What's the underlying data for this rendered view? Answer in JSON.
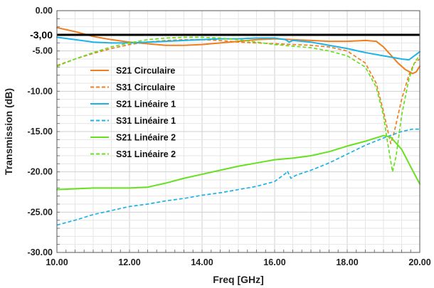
{
  "chart_data": {
    "type": "line",
    "title": "",
    "xlabel": "Freq [GHz]",
    "ylabel": "Transmission (dB)",
    "xlim": [
      10,
      20
    ],
    "ylim": [
      -30,
      0
    ],
    "x_ticks": [
      "10.00",
      "12.00",
      "14.00",
      "16.00",
      "18.00",
      "20.00"
    ],
    "y_ticks": [
      "0.00",
      "-5.00",
      "-10.00",
      "-15.00",
      "-20.00",
      "-25.00",
      "-30.00"
    ],
    "extra_y_tick": {
      "value": -3,
      "label": "-3,00"
    },
    "grid": true,
    "legend_position": "left",
    "reference_line": {
      "y": -3,
      "color": "#000000"
    },
    "series": [
      {
        "name": "S21 Circulaire",
        "color": "#f07d1e",
        "dash": "solid",
        "points": [
          [
            10,
            -2.1
          ],
          [
            10.5,
            -2.6
          ],
          [
            11,
            -3.2
          ],
          [
            11.5,
            -3.6
          ],
          [
            12,
            -3.9
          ],
          [
            12.5,
            -4.1
          ],
          [
            13,
            -4.3
          ],
          [
            13.5,
            -4.3
          ],
          [
            14,
            -4.2
          ],
          [
            14.5,
            -4.0
          ],
          [
            15,
            -3.8
          ],
          [
            15.5,
            -3.6
          ],
          [
            16,
            -3.5
          ],
          [
            16.5,
            -3.6
          ],
          [
            17,
            -3.7
          ],
          [
            17.5,
            -3.8
          ],
          [
            18,
            -3.8
          ],
          [
            18.5,
            -3.7
          ],
          [
            18.8,
            -3.8
          ],
          [
            19.0,
            -4.5
          ],
          [
            19.2,
            -5.5
          ],
          [
            19.4,
            -6.5
          ],
          [
            19.6,
            -7.3
          ],
          [
            19.8,
            -7.8
          ],
          [
            19.9,
            -7.6
          ],
          [
            20,
            -6.9
          ]
        ]
      },
      {
        "name": "S31 Circulaire",
        "color": "#f07d1e",
        "dash": "dashed",
        "points": [
          [
            10,
            -6.8
          ],
          [
            10.5,
            -6.0
          ],
          [
            11,
            -5.3
          ],
          [
            11.5,
            -4.7
          ],
          [
            12,
            -4.2
          ],
          [
            12.5,
            -3.9
          ],
          [
            13,
            -3.7
          ],
          [
            13.5,
            -3.6
          ],
          [
            14,
            -3.6
          ],
          [
            14.5,
            -3.7
          ],
          [
            15,
            -3.9
          ],
          [
            15.5,
            -4.0
          ],
          [
            16,
            -4.1
          ],
          [
            16.5,
            -4.2
          ],
          [
            17,
            -4.3
          ],
          [
            17.5,
            -4.5
          ],
          [
            18,
            -5.0
          ],
          [
            18.5,
            -6.5
          ],
          [
            18.8,
            -9.0
          ],
          [
            19.0,
            -12.5
          ],
          [
            19.2,
            -16.5
          ],
          [
            19.3,
            -15.0
          ],
          [
            19.5,
            -11.0
          ],
          [
            19.7,
            -8.0
          ],
          [
            19.85,
            -6.5
          ],
          [
            20,
            -6.0
          ]
        ]
      },
      {
        "name": "S21 Linéaire 1",
        "color": "#1ab3e8",
        "dash": "solid",
        "points": [
          [
            10,
            -3.3
          ],
          [
            10.5,
            -3.6
          ],
          [
            11,
            -3.9
          ],
          [
            11.5,
            -4.0
          ],
          [
            12,
            -4.0
          ],
          [
            12.5,
            -3.9
          ],
          [
            13,
            -3.8
          ],
          [
            13.5,
            -3.7
          ],
          [
            14,
            -3.6
          ],
          [
            14.5,
            -3.5
          ],
          [
            15,
            -3.5
          ],
          [
            15.5,
            -3.4
          ],
          [
            16,
            -3.4
          ],
          [
            16.3,
            -3.6
          ],
          [
            16.4,
            -3.9
          ],
          [
            16.5,
            -3.7
          ],
          [
            17,
            -3.9
          ],
          [
            17.5,
            -4.3
          ],
          [
            18,
            -4.7
          ],
          [
            18.5,
            -5.2
          ],
          [
            19,
            -5.6
          ],
          [
            19.5,
            -6.0
          ],
          [
            19.7,
            -6.1
          ],
          [
            20,
            -5.1
          ]
        ]
      },
      {
        "name": "S31 Linéaire 1",
        "color": "#1ab3e8",
        "dash": "dashed",
        "points": [
          [
            10,
            -26.6
          ],
          [
            10.5,
            -26.0
          ],
          [
            11,
            -25.3
          ],
          [
            11.5,
            -24.8
          ],
          [
            12,
            -24.3
          ],
          [
            12.5,
            -24.0
          ],
          [
            13,
            -23.6
          ],
          [
            13.5,
            -23.3
          ],
          [
            14,
            -22.9
          ],
          [
            14.5,
            -22.6
          ],
          [
            15,
            -22.2
          ],
          [
            15.5,
            -21.8
          ],
          [
            16,
            -21.2
          ],
          [
            16.3,
            -20.2
          ],
          [
            16.35,
            -19.9
          ],
          [
            16.45,
            -20.8
          ],
          [
            16.6,
            -20.4
          ],
          [
            17,
            -19.8
          ],
          [
            17.5,
            -18.9
          ],
          [
            18,
            -17.8
          ],
          [
            18.5,
            -16.7
          ],
          [
            19,
            -15.8
          ],
          [
            19.5,
            -15.0
          ],
          [
            19.8,
            -14.7
          ],
          [
            20,
            -14.7
          ]
        ]
      },
      {
        "name": "S21 Linéaire 2",
        "color": "#66e01f",
        "dash": "solid",
        "points": [
          [
            10,
            -22.2
          ],
          [
            10.5,
            -22.1
          ],
          [
            11,
            -22.0
          ],
          [
            11.5,
            -22.0
          ],
          [
            12,
            -22.0
          ],
          [
            12.5,
            -21.9
          ],
          [
            13,
            -21.4
          ],
          [
            13.5,
            -20.8
          ],
          [
            14,
            -20.3
          ],
          [
            14.5,
            -19.8
          ],
          [
            15,
            -19.3
          ],
          [
            15.5,
            -18.9
          ],
          [
            16,
            -18.5
          ],
          [
            16.5,
            -18.3
          ],
          [
            17,
            -18.0
          ],
          [
            17.5,
            -17.5
          ],
          [
            18,
            -16.8
          ],
          [
            18.5,
            -16.2
          ],
          [
            19,
            -15.5
          ],
          [
            19.2,
            -15.7
          ],
          [
            19.5,
            -17.2
          ],
          [
            19.8,
            -19.8
          ],
          [
            20,
            -21.5
          ]
        ]
      },
      {
        "name": "S31 Linéaire 2",
        "color": "#66e01f",
        "dash": "dashed",
        "points": [
          [
            10,
            -6.9
          ],
          [
            10.5,
            -6.0
          ],
          [
            11,
            -5.2
          ],
          [
            11.5,
            -4.5
          ],
          [
            12,
            -4.0
          ],
          [
            12.5,
            -3.6
          ],
          [
            13,
            -3.4
          ],
          [
            13.5,
            -3.3
          ],
          [
            14,
            -3.3
          ],
          [
            14.5,
            -3.4
          ],
          [
            15,
            -3.6
          ],
          [
            15.5,
            -3.9
          ],
          [
            16,
            -4.2
          ],
          [
            16.5,
            -4.4
          ],
          [
            17,
            -4.6
          ],
          [
            17.5,
            -5.0
          ],
          [
            18,
            -5.6
          ],
          [
            18.5,
            -7.0
          ],
          [
            18.8,
            -9.5
          ],
          [
            19.0,
            -13.0
          ],
          [
            19.1,
            -16.0
          ],
          [
            19.25,
            -20.0
          ],
          [
            19.35,
            -18.0
          ],
          [
            19.5,
            -13.0
          ],
          [
            19.7,
            -8.5
          ],
          [
            19.85,
            -6.5
          ],
          [
            20,
            -5.5
          ]
        ]
      }
    ]
  }
}
